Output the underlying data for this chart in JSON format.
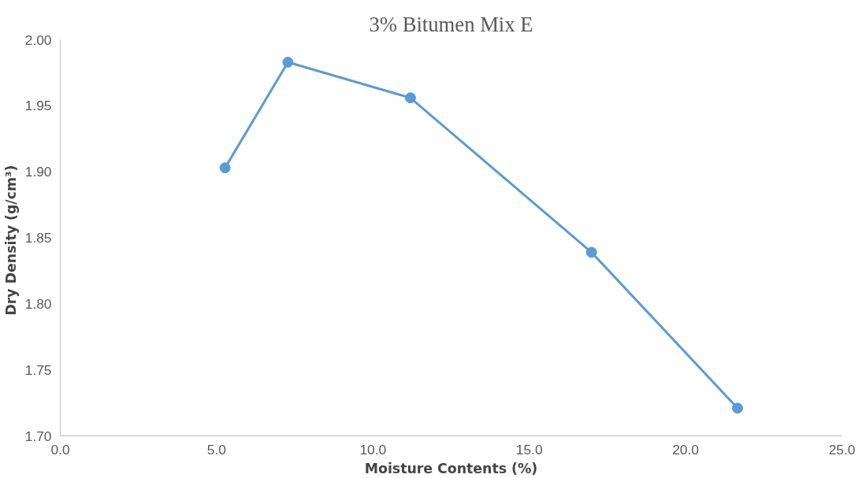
{
  "chart_data": {
    "type": "line",
    "title": "3% Bitumen Mix E",
    "xlabel": "Moisture Contents (%)",
    "ylabel": "Dry  Density (g/cm³)",
    "series": [
      {
        "color": "#5b9bd5",
        "x": [
          5.27,
          7.28,
          11.2,
          16.99,
          21.66
        ],
        "values": [
          1.903,
          1.983,
          1.956,
          1.839,
          1.721
        ]
      }
    ],
    "xlim": [
      0,
      25
    ],
    "xticks": [
      {
        "value": 0,
        "label": "0.0"
      },
      {
        "value": 5,
        "label": "5.0"
      },
      {
        "value": 10,
        "label": "10.0"
      },
      {
        "value": 15,
        "label": "15.0"
      },
      {
        "value": 20,
        "label": "20.0"
      },
      {
        "value": 25,
        "label": "25.0"
      }
    ],
    "ylim": [
      1.7,
      2.0
    ],
    "yticks": [
      {
        "value": 1.7,
        "label": "1.70"
      },
      {
        "value": 1.75,
        "label": "1.75"
      },
      {
        "value": 1.8,
        "label": "1.80"
      },
      {
        "value": 1.85,
        "label": "1.85"
      },
      {
        "value": 1.9,
        "label": "1.90"
      },
      {
        "value": 1.95,
        "label": "1.95"
      },
      {
        "value": 2.0,
        "label": "2.00"
      }
    ],
    "grid": false,
    "marker": "circle",
    "line_style": "solid"
  }
}
